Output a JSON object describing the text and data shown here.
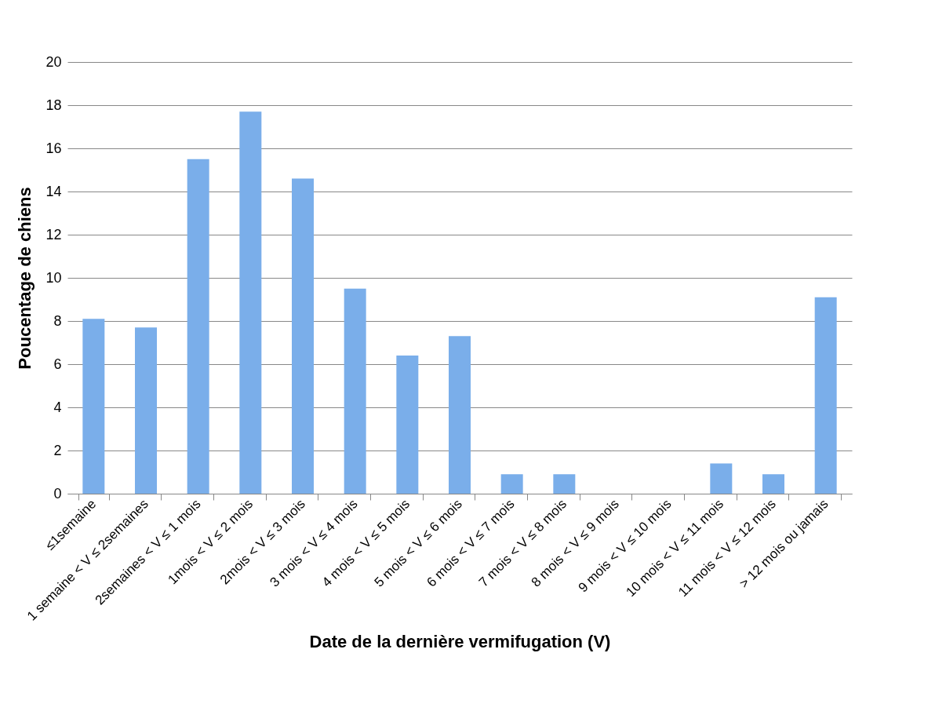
{
  "chart_data": {
    "type": "bar",
    "xlabel": "Date de la dernière vermifugation (V)",
    "ylabel": "Poucentage de chiens",
    "categories": [
      "≤1semaine",
      "1 semaine < V ≤ 2semaines",
      "2semaines < V ≤ 1 mois",
      "1mois < V ≤ 2 mois",
      "2mois < V ≤ 3 mois",
      "3 mois < V ≤ 4 mois",
      "4 mois < V ≤ 5 mois",
      "5 mois < V ≤ 6 mois",
      "6 mois < V ≤ 7 mois",
      "7 mois < V ≤ 8 mois",
      "8 mois < V ≤ 9 mois",
      "9 mois < V ≤ 10 mois",
      "10 mois < V ≤ 11 mois",
      "11 mois < V ≤ 12 mois",
      "> 12 mois ou jamais"
    ],
    "values": [
      8.1,
      7.7,
      15.5,
      17.7,
      14.6,
      9.5,
      6.4,
      7.3,
      0.9,
      0.9,
      0,
      0,
      1.4,
      0.9,
      9.1
    ],
    "color": "#7aaeea",
    "ylim": [
      0,
      20
    ],
    "yticks": [
      0,
      2,
      4,
      6,
      8,
      10,
      12,
      14,
      16,
      18,
      20
    ],
    "grid": "y"
  }
}
